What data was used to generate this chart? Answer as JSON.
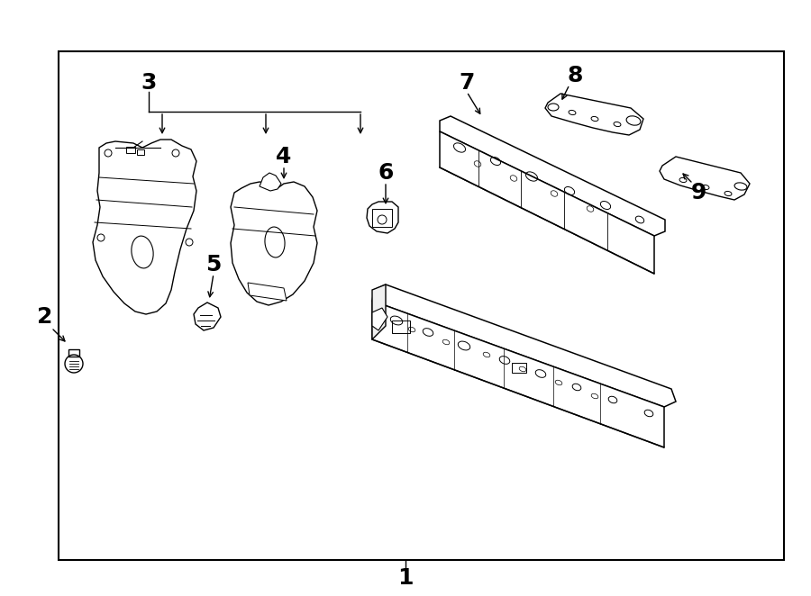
{
  "bg_color": "#ffffff",
  "border_color": "#000000",
  "line_color": "#000000",
  "label_color": "#000000",
  "border_lw": 1.5,
  "part_lw": 1.0,
  "fig_width": 9.0,
  "fig_height": 6.62,
  "label_fontsize": 18
}
